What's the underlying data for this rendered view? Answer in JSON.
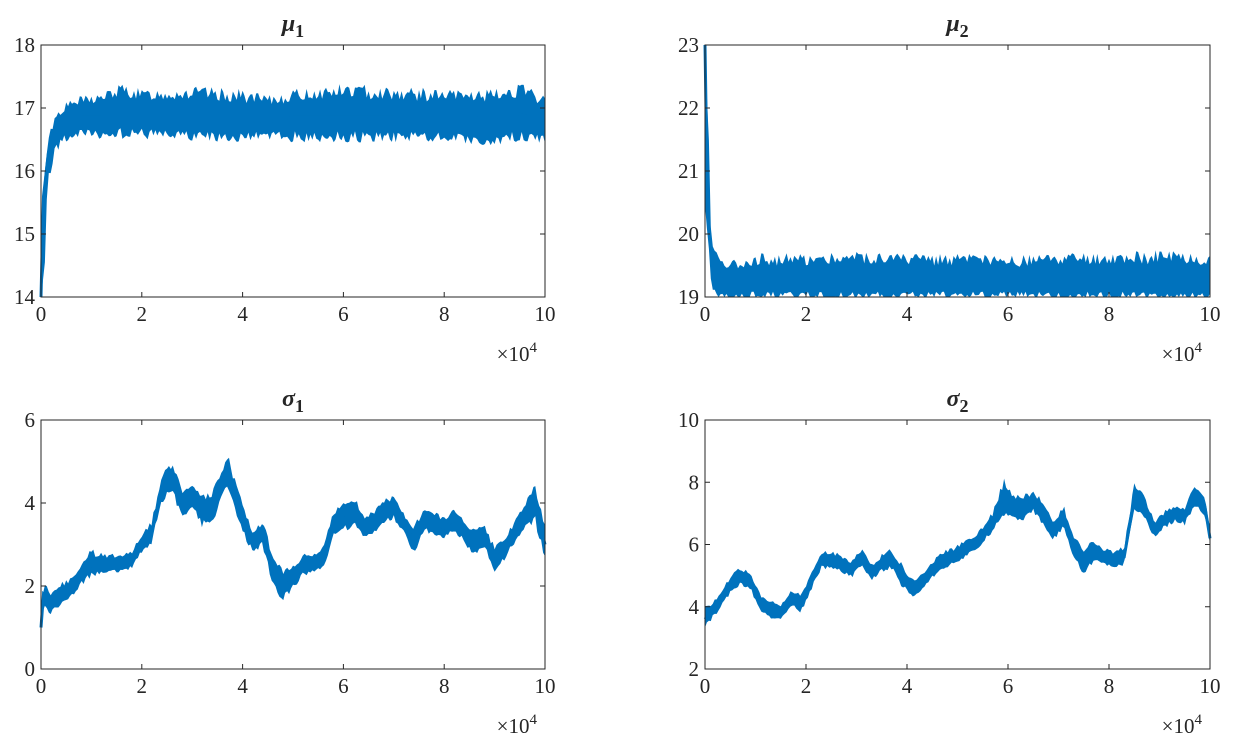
{
  "figure": {
    "series_color": "#0072BD",
    "axis_color": "#262626"
  },
  "chart_data": [
    {
      "type": "line",
      "title": "μ",
      "title_subscript": "1",
      "x_multiplier": "×10",
      "x_multiplier_exp": "4",
      "xlim": [
        0,
        10
      ],
      "ylim": [
        14,
        18
      ],
      "xticks": [
        0,
        2,
        4,
        6,
        8,
        10
      ],
      "yticks": [
        14,
        15,
        16,
        17,
        18
      ],
      "grid": false,
      "series": [
        {
          "x": [
            0,
            0.05,
            0.15,
            0.3,
            0.5,
            0.8,
            1.2,
            1.6,
            2,
            3,
            4,
            4.5,
            5,
            6,
            7,
            8,
            9,
            9.5,
            10
          ],
          "mean": [
            14.0,
            15.6,
            16.3,
            16.65,
            16.8,
            16.85,
            16.85,
            16.9,
            16.88,
            16.85,
            16.82,
            16.78,
            16.85,
            16.85,
            16.85,
            16.82,
            16.85,
            16.9,
            16.8
          ],
          "low": [
            14.0,
            14.0,
            15.8,
            16.3,
            16.45,
            16.5,
            16.5,
            16.5,
            16.5,
            16.45,
            16.45,
            16.5,
            16.45,
            16.45,
            16.45,
            16.45,
            16.4,
            16.45,
            16.4
          ],
          "high": [
            14.4,
            16.0,
            16.6,
            16.95,
            17.1,
            17.2,
            17.25,
            17.4,
            17.3,
            17.35,
            17.3,
            17.2,
            17.3,
            17.4,
            17.35,
            17.3,
            17.3,
            17.4,
            17.2
          ]
        }
      ]
    },
    {
      "type": "line",
      "title": "μ",
      "title_subscript": "2",
      "x_multiplier": "×10",
      "x_multiplier_exp": "4",
      "xlim": [
        0,
        10
      ],
      "ylim": [
        19,
        23
      ],
      "xticks": [
        0,
        2,
        4,
        6,
        8,
        10
      ],
      "yticks": [
        19,
        20,
        21,
        22,
        23
      ],
      "grid": false,
      "series": [
        {
          "x": [
            0,
            0.02,
            0.05,
            0.1,
            0.15,
            0.25,
            0.4,
            0.6,
            1,
            2,
            3,
            4,
            5,
            6,
            7,
            8,
            9,
            10
          ],
          "mean": [
            23.0,
            22.0,
            20.5,
            19.9,
            19.6,
            19.4,
            19.3,
            19.25,
            19.25,
            19.25,
            19.25,
            19.25,
            19.25,
            19.25,
            19.25,
            19.25,
            19.25,
            19.2
          ],
          "low": [
            20.0,
            19.9,
            19.6,
            19.3,
            19.0,
            18.9,
            18.95,
            18.95,
            18.95,
            18.95,
            18.95,
            18.95,
            18.95,
            18.95,
            18.95,
            18.95,
            18.95,
            18.95
          ],
          "high": [
            23.0,
            23.0,
            23.0,
            20.3,
            19.9,
            19.7,
            19.6,
            19.6,
            19.7,
            19.7,
            19.75,
            19.7,
            19.7,
            19.65,
            19.7,
            19.7,
            19.75,
            19.7
          ]
        }
      ]
    },
    {
      "type": "line",
      "title": "σ",
      "title_subscript": "1",
      "x_multiplier": "×10",
      "x_multiplier_exp": "4",
      "xlim": [
        0,
        10
      ],
      "ylim": [
        0,
        6
      ],
      "xticks": [
        0,
        2,
        4,
        6,
        8,
        10
      ],
      "yticks": [
        0,
        2,
        4,
        6
      ],
      "grid": false,
      "series": [
        {
          "x": [
            0,
            0.05,
            0.2,
            0.4,
            0.6,
            0.8,
            1.0,
            1.2,
            1.5,
            1.8,
            2.0,
            2.2,
            2.4,
            2.6,
            2.8,
            3.0,
            3.2,
            3.4,
            3.6,
            3.7,
            3.8,
            4.0,
            4.2,
            4.4,
            4.6,
            4.8,
            5.0,
            5.2,
            5.4,
            5.6,
            5.8,
            6.0,
            6.2,
            6.4,
            6.6,
            6.8,
            7.0,
            7.2,
            7.4,
            7.6,
            7.8,
            8.0,
            8.2,
            8.4,
            8.6,
            8.8,
            9.0,
            9.2,
            9.4,
            9.6,
            9.8,
            10.0
          ],
          "mean": [
            1.0,
            1.8,
            1.6,
            1.8,
            1.9,
            2.3,
            2.5,
            2.5,
            2.5,
            2.6,
            3.0,
            3.3,
            4.4,
            4.6,
            4.0,
            4.2,
            3.8,
            3.9,
            4.5,
            4.8,
            4.4,
            3.6,
            3.1,
            3.3,
            2.4,
            2.1,
            2.2,
            2.5,
            2.5,
            2.7,
            3.5,
            3.7,
            3.8,
            3.4,
            3.5,
            3.8,
            3.9,
            3.5,
            3.1,
            3.6,
            3.5,
            3.4,
            3.6,
            3.3,
            3.1,
            3.2,
            2.6,
            2.9,
            3.3,
            3.7,
            4.0,
            3.0
          ],
          "low": [
            0.9,
            1.4,
            1.3,
            1.5,
            1.7,
            2.0,
            2.2,
            2.3,
            2.3,
            2.4,
            2.8,
            3.0,
            4.0,
            4.2,
            3.6,
            3.8,
            3.4,
            3.5,
            4.1,
            4.4,
            3.9,
            3.2,
            2.8,
            2.9,
            2.0,
            1.6,
            1.9,
            2.2,
            2.3,
            2.4,
            3.1,
            3.3,
            3.4,
            3.1,
            3.2,
            3.5,
            3.6,
            3.2,
            2.7,
            3.3,
            3.2,
            3.1,
            3.3,
            3.0,
            2.7,
            2.9,
            2.3,
            2.6,
            3.0,
            3.3,
            3.5,
            2.6
          ],
          "high": [
            1.3,
            2.1,
            1.9,
            2.1,
            2.2,
            2.6,
            2.9,
            2.8,
            2.8,
            2.9,
            3.3,
            3.6,
            4.8,
            5.0,
            4.4,
            4.5,
            4.2,
            4.3,
            4.9,
            5.3,
            4.8,
            4.0,
            3.4,
            3.6,
            2.8,
            2.4,
            2.5,
            2.8,
            2.8,
            3.0,
            3.8,
            4.1,
            4.2,
            3.8,
            3.8,
            4.1,
            4.2,
            3.8,
            3.5,
            3.9,
            3.8,
            3.7,
            3.9,
            3.6,
            3.4,
            3.5,
            3.0,
            3.2,
            3.6,
            4.0,
            4.5,
            3.5
          ]
        }
      ]
    },
    {
      "type": "line",
      "title": "σ",
      "title_subscript": "2",
      "x_multiplier": "×10",
      "x_multiplier_exp": "4",
      "xlim": [
        0,
        10
      ],
      "ylim": [
        2,
        10
      ],
      "xticks": [
        0,
        2,
        4,
        6,
        8,
        10
      ],
      "yticks": [
        2,
        4,
        6,
        8,
        10
      ],
      "grid": false,
      "series": [
        {
          "x": [
            0,
            0.1,
            0.3,
            0.5,
            0.7,
            0.9,
            1.1,
            1.3,
            1.5,
            1.7,
            1.9,
            2.1,
            2.3,
            2.5,
            2.7,
            2.9,
            3.1,
            3.3,
            3.5,
            3.7,
            3.9,
            4.1,
            4.3,
            4.5,
            4.7,
            4.9,
            5.1,
            5.3,
            5.5,
            5.7,
            5.9,
            6.1,
            6.3,
            6.5,
            6.7,
            6.9,
            7.1,
            7.3,
            7.5,
            7.7,
            7.9,
            8.1,
            8.3,
            8.5,
            8.7,
            8.9,
            9.1,
            9.3,
            9.5,
            9.7,
            9.9,
            10.0
          ],
          "mean": [
            3.6,
            3.8,
            4.2,
            4.7,
            5.0,
            4.8,
            4.1,
            3.9,
            3.8,
            4.3,
            4.1,
            4.8,
            5.5,
            5.5,
            5.4,
            5.2,
            5.6,
            5.1,
            5.4,
            5.5,
            5.0,
            4.6,
            4.8,
            5.2,
            5.5,
            5.6,
            5.8,
            6.0,
            6.3,
            6.7,
            7.3,
            7.2,
            7.1,
            7.4,
            7.0,
            6.4,
            6.9,
            5.9,
            5.5,
            5.8,
            5.6,
            5.5,
            5.6,
            7.5,
            7.2,
            6.5,
            6.8,
            7.0,
            6.9,
            7.6,
            7.2,
            6.2
          ],
          "low": [
            3.3,
            3.5,
            3.9,
            4.4,
            4.7,
            4.5,
            3.8,
            3.6,
            3.5,
            4.0,
            3.8,
            4.5,
            5.2,
            5.2,
            5.1,
            4.9,
            5.3,
            4.8,
            5.1,
            5.2,
            4.6,
            4.3,
            4.5,
            4.9,
            5.2,
            5.3,
            5.5,
            5.7,
            6.0,
            6.4,
            6.9,
            6.8,
            6.7,
            7.0,
            6.6,
            6.1,
            6.5,
            5.5,
            5.0,
            5.4,
            5.3,
            5.2,
            5.3,
            7.1,
            6.8,
            6.2,
            6.5,
            6.7,
            6.6,
            7.2,
            6.9,
            6.0
          ],
          "high": [
            4.2,
            4.1,
            4.5,
            5.0,
            5.3,
            5.1,
            4.4,
            4.2,
            4.1,
            4.6,
            4.4,
            5.1,
            5.8,
            5.8,
            5.7,
            5.5,
            5.9,
            5.4,
            5.7,
            5.9,
            5.4,
            4.9,
            5.1,
            5.5,
            5.8,
            5.9,
            6.1,
            6.3,
            6.6,
            7.1,
            8.2,
            7.6,
            7.6,
            7.8,
            7.4,
            6.8,
            7.3,
            6.3,
            5.9,
            6.2,
            5.9,
            5.8,
            6.0,
            8.0,
            7.6,
            6.8,
            7.1,
            7.3,
            7.2,
            8.0,
            7.6,
            6.6
          ]
        }
      ]
    }
  ]
}
